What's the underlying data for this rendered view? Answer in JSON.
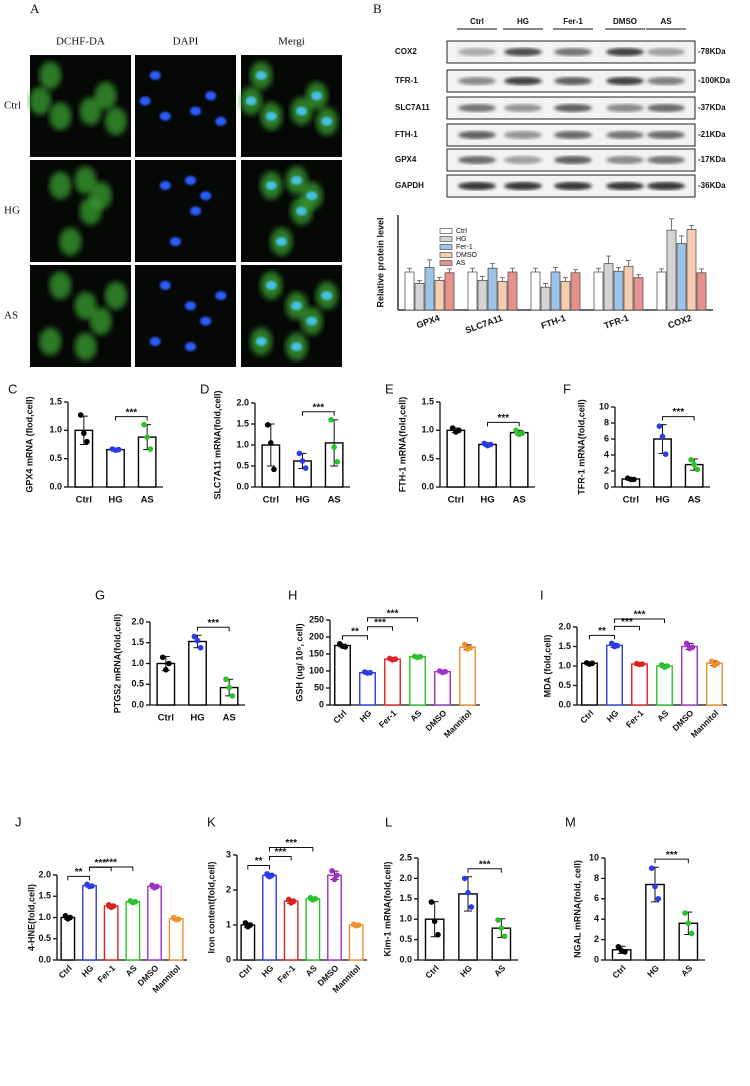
{
  "panel_a": {
    "label": "A",
    "columns": [
      "DCHF-DA",
      "DAPI",
      "Mergi"
    ],
    "rows": [
      "Ctrl",
      "HG",
      "AS"
    ]
  },
  "panel_b": {
    "label": "B",
    "lanes": [
      "Ctrl",
      "HG",
      "Fer-1",
      "DMSO",
      "AS"
    ],
    "proteins": [
      "COX2",
      "TFR-1",
      "SLC7A11",
      "FTH-1",
      "GPX4",
      "GAPDH"
    ],
    "sizes": [
      "-78KDa",
      "-100KDa",
      "-37KDa",
      "-21KDa",
      "-17KDa",
      "-36KDa"
    ]
  },
  "chart_data": [
    {
      "type": "grouped_bar",
      "ylabel": "Relative protein level",
      "categories": [
        "GPX4",
        "SLC7A11",
        "FTH-1",
        "TFR-1",
        "COX2"
      ],
      "series": [
        {
          "name": "Ctrl",
          "color": "#ffffff",
          "values": [
            1.0,
            1.0,
            1.0,
            1.0,
            1.0
          ],
          "errors": [
            0.1,
            0.1,
            0.1,
            0.1,
            0.08
          ]
        },
        {
          "name": "HG",
          "color": "#d4d4d4",
          "values": [
            0.7,
            0.78,
            0.6,
            1.22,
            2.1
          ],
          "errors": [
            0.08,
            0.1,
            0.1,
            0.2,
            0.3
          ]
        },
        {
          "name": "Fer-1",
          "color": "#9ec3e8",
          "values": [
            1.12,
            1.1,
            1.0,
            1.02,
            1.75
          ],
          "errors": [
            0.2,
            0.12,
            0.12,
            0.1,
            0.2
          ]
        },
        {
          "name": "DMSO",
          "color": "#f6cdb0",
          "values": [
            0.78,
            0.75,
            0.75,
            1.15,
            2.12
          ],
          "errors": [
            0.08,
            0.1,
            0.1,
            0.15,
            0.1
          ]
        },
        {
          "name": "AS",
          "color": "#e8918c",
          "values": [
            0.98,
            1.0,
            0.98,
            0.85,
            0.98
          ],
          "errors": [
            0.1,
            0.1,
            0.08,
            0.08,
            0.1
          ]
        }
      ],
      "ylim": [
        0,
        2.5
      ]
    },
    {
      "type": "bar",
      "panel": "C",
      "ylabel": "GPX4 mRNA (flod,cell)",
      "categories": [
        "Ctrl",
        "HG",
        "AS"
      ],
      "bar_color": "#000000",
      "colors": [
        "#000000",
        "#2b3be8",
        "#29c229"
      ],
      "values": [
        1.0,
        0.66,
        0.88
      ],
      "errors": [
        0.25,
        0.02,
        0.22
      ],
      "points": [
        [
          1.27,
          0.95,
          0.8
        ],
        [
          0.67,
          0.65,
          0.66
        ],
        [
          1.1,
          0.88,
          0.67
        ]
      ],
      "ylim": [
        0,
        1.5
      ],
      "yticks": [
        {
          "value": 0,
          "label": "0.0"
        },
        0.5,
        {
          "value": 1,
          "label": "1.0"
        },
        1.5
      ],
      "significance": [
        {
          "text": "***",
          "between": [
            "HG",
            "AS"
          ]
        }
      ]
    },
    {
      "type": "bar",
      "panel": "D",
      "ylabel": "SLC7A11 mRNA(fold,cell)",
      "categories": [
        "Ctrl",
        "HG",
        "AS"
      ],
      "bar_color": "#000000",
      "colors": [
        "#000000",
        "#2b3be8",
        "#29c229"
      ],
      "values": [
        1.0,
        0.62,
        1.05
      ],
      "errors": [
        0.5,
        0.18,
        0.55
      ],
      "points": [
        [
          1.48,
          1.05,
          0.42
        ],
        [
          0.8,
          0.62,
          0.45
        ],
        [
          1.6,
          0.95,
          0.6
        ]
      ],
      "ylim": [
        0,
        2
      ],
      "yticks": [
        {
          "value": 0,
          "label": "0.0"
        },
        0.5,
        {
          "value": 1,
          "label": "1.0"
        },
        1.5,
        {
          "value": 2,
          "label": "2.0"
        }
      ],
      "significance": [
        {
          "text": "***",
          "between": [
            "HG",
            "AS"
          ]
        }
      ]
    },
    {
      "type": "bar",
      "panel": "E",
      "ylabel": "FTH-1 mRNA(fold,cell)",
      "categories": [
        "Ctrl",
        "HG",
        "AS"
      ],
      "bar_color": "#000000",
      "colors": [
        "#000000",
        "#2b3be8",
        "#29c229"
      ],
      "values": [
        1.0,
        0.75,
        0.96
      ],
      "errors": [
        0.04,
        0.03,
        0.04
      ],
      "points": [
        [
          1.04,
          0.97,
          1.0
        ],
        [
          0.77,
          0.73,
          0.75
        ],
        [
          1.0,
          0.93,
          0.95
        ]
      ],
      "ylim": [
        0,
        1.5
      ],
      "yticks": [
        {
          "value": 0,
          "label": "0.0"
        },
        0.5,
        {
          "value": 1,
          "label": "1.0"
        },
        1.5
      ],
      "significance": [
        {
          "text": "***",
          "between": [
            "HG",
            "AS"
          ]
        }
      ]
    },
    {
      "type": "bar",
      "panel": "F",
      "ylabel": "TFR-1 mRNA(fold,cell)",
      "categories": [
        "Ctrl",
        "HG",
        "AS"
      ],
      "bar_color": "#000000",
      "colors": [
        "#000000",
        "#2b3be8",
        "#29c229"
      ],
      "values": [
        1.0,
        6.0,
        2.8
      ],
      "errors": [
        0.15,
        1.8,
        0.7
      ],
      "points": [
        [
          1.1,
          0.95,
          0.95
        ],
        [
          7.6,
          6.3,
          4.1
        ],
        [
          3.4,
          2.8,
          2.2
        ]
      ],
      "ylim": [
        0,
        10
      ],
      "yticks": [
        0,
        2,
        4,
        6,
        8,
        10
      ],
      "significance": [
        {
          "text": "***",
          "between": [
            "HG",
            "AS"
          ]
        }
      ]
    },
    {
      "type": "bar",
      "panel": "G",
      "ylabel": "PTGS2 mRNA(fold,cell)",
      "categories": [
        "Ctrl",
        "HG",
        "AS"
      ],
      "bar_color": "#000000",
      "colors": [
        "#000000",
        "#2b3be8",
        "#29c229"
      ],
      "values": [
        1.0,
        1.53,
        0.42
      ],
      "errors": [
        0.17,
        0.15,
        0.2
      ],
      "points": [
        [
          1.15,
          0.85,
          1.0
        ],
        [
          1.65,
          1.55,
          1.38
        ],
        [
          0.62,
          0.42,
          0.22
        ]
      ],
      "ylim": [
        0,
        2
      ],
      "yticks": [
        {
          "value": 0,
          "label": "0.0"
        },
        0.5,
        {
          "value": 1,
          "label": "1.0"
        },
        1.5,
        {
          "value": 2,
          "label": "2.0"
        }
      ],
      "significance": [
        {
          "text": "***",
          "between": [
            "HG",
            "AS"
          ]
        }
      ]
    },
    {
      "type": "bar",
      "panel": "H",
      "ylabel": "GSH (ug/ 10⁶, cell)",
      "categories": [
        "Ctrl",
        "HG",
        "Fer-1",
        "AS",
        "DMSO",
        "Mannitol"
      ],
      "colors": [
        "#000000",
        "#2b3be8",
        "#e02020",
        "#29c229",
        "#a030c8",
        "#f0902a"
      ],
      "values": [
        175,
        95,
        135,
        142,
        98,
        170
      ],
      "errors": [
        4,
        2,
        3,
        2,
        2,
        7
      ],
      "points": [
        [
          180,
          173,
          171
        ],
        [
          97,
          94,
          95
        ],
        [
          137,
          133,
          135
        ],
        [
          143,
          140,
          142
        ],
        [
          100,
          96,
          98
        ],
        [
          178,
          165,
          168
        ]
      ],
      "ylim": [
        0,
        250
      ],
      "yticks": [
        0,
        50,
        100,
        150,
        200,
        250
      ],
      "significance": [
        {
          "text": "**",
          "between": [
            "Ctrl",
            "HG"
          ]
        },
        {
          "text": "***",
          "between": [
            "HG",
            "Fer-1"
          ]
        },
        {
          "text": "***",
          "between": [
            "HG",
            "AS"
          ]
        }
      ]
    },
    {
      "type": "bar",
      "panel": "I",
      "ylabel": "MDA (fold,cell)",
      "categories": [
        "Ctrl",
        "HG",
        "Fer-1",
        "AS",
        "DMSO",
        "Mannitol"
      ],
      "colors": [
        "#000000",
        "#2b3be8",
        "#e02020",
        "#29c229",
        "#a030c8",
        "#f0902a"
      ],
      "values": [
        1.07,
        1.53,
        1.05,
        1.0,
        1.5,
        1.07
      ],
      "errors": [
        0.03,
        0.05,
        0.02,
        0.04,
        0.08,
        0.06
      ],
      "points": [
        [
          1.08,
          1.05,
          1.07
        ],
        [
          1.58,
          1.5,
          1.52
        ],
        [
          1.06,
          1.04,
          1.05
        ],
        [
          1.03,
          0.97,
          1.0
        ],
        [
          1.58,
          1.45,
          1.48
        ],
        [
          1.12,
          1.02,
          1.07
        ]
      ],
      "ylim": [
        0,
        2
      ],
      "yticks": [
        {
          "value": 0,
          "label": "0.0"
        },
        0.5,
        {
          "value": 1,
          "label": "1.0"
        },
        1.5,
        {
          "value": 2,
          "label": "2.0"
        }
      ],
      "significance": [
        {
          "text": "**",
          "between": [
            "Ctrl",
            "HG"
          ]
        },
        {
          "text": "***",
          "between": [
            "HG",
            "Fer-1"
          ]
        },
        {
          "text": "***",
          "between": [
            "HG",
            "AS"
          ]
        }
      ]
    },
    {
      "type": "bar",
      "panel": "J",
      "ylabel": "4-HNE(fold,cell)",
      "categories": [
        "Ctrl",
        "HG",
        "Fer-1",
        "AS",
        "DMSO",
        "Mannitol"
      ],
      "colors": [
        "#000000",
        "#2b3be8",
        "#e02020",
        "#29c229",
        "#a030c8",
        "#f0902a"
      ],
      "values": [
        1.0,
        1.75,
        1.27,
        1.37,
        1.73,
        0.97
      ],
      "errors": [
        0.04,
        0.03,
        0.04,
        0.02,
        0.04,
        0.03
      ],
      "points": [
        [
          1.04,
          0.97,
          1.0
        ],
        [
          1.78,
          1.73,
          1.74
        ],
        [
          1.3,
          1.24,
          1.27
        ],
        [
          1.39,
          1.35,
          1.37
        ],
        [
          1.76,
          1.7,
          1.73
        ],
        [
          1.0,
          0.95,
          0.96
        ]
      ],
      "ylim": [
        0,
        2
      ],
      "yticks": [
        {
          "value": 0,
          "label": "0.0"
        },
        0.5,
        {
          "value": 1,
          "label": "1.0"
        },
        1.5,
        {
          "value": 2,
          "label": "2.0"
        }
      ],
      "significance": [
        {
          "text": "**",
          "between": [
            "Ctrl",
            "HG"
          ]
        },
        {
          "text": "***",
          "between": [
            "HG",
            "Fer-1"
          ]
        },
        {
          "text": "***",
          "between": [
            "HG",
            "AS"
          ]
        }
      ]
    },
    {
      "type": "bar",
      "panel": "K",
      "ylabel": "Iron content(fold,cell)",
      "categories": [
        "Ctrl",
        "HG",
        "Fer-1",
        "AS",
        "DMSO",
        "Mannitol"
      ],
      "colors": [
        "#000000",
        "#2b3be8",
        "#e02020",
        "#29c229",
        "#a030c8",
        "#f0902a"
      ],
      "values": [
        1.0,
        2.42,
        1.68,
        1.75,
        2.42,
        1.0
      ],
      "errors": [
        0.06,
        0.05,
        0.06,
        0.04,
        0.12,
        0.03
      ],
      "points": [
        [
          1.06,
          0.95,
          1.0
        ],
        [
          2.46,
          2.38,
          2.42
        ],
        [
          1.73,
          1.63,
          1.68
        ],
        [
          1.78,
          1.72,
          1.75
        ],
        [
          2.55,
          2.3,
          2.42
        ],
        [
          1.02,
          0.98,
          1.0
        ]
      ],
      "ylim": [
        0,
        3
      ],
      "yticks": [
        0,
        1,
        2,
        3
      ],
      "significance": [
        {
          "text": "**",
          "between": [
            "Ctrl",
            "HG"
          ]
        },
        {
          "text": "***",
          "between": [
            "HG",
            "Fer-1"
          ]
        },
        {
          "text": "***",
          "between": [
            "HG",
            "AS"
          ]
        }
      ]
    },
    {
      "type": "bar",
      "panel": "L",
      "ylabel": "Kim-1 mRNA(fold,cell)",
      "categories": [
        "Ctrl",
        "HG",
        "AS"
      ],
      "bar_color": "#000000",
      "colors": [
        "#000000",
        "#2b3be8",
        "#29c229"
      ],
      "values": [
        1.0,
        1.62,
        0.78
      ],
      "errors": [
        0.43,
        0.42,
        0.23
      ],
      "points": [
        [
          1.42,
          0.95,
          0.62
        ],
        [
          2.0,
          1.65,
          1.3
        ],
        [
          0.98,
          0.78,
          0.58
        ]
      ],
      "ylim": [
        0,
        2.5
      ],
      "yticks": [
        {
          "value": 0,
          "label": "0.0"
        },
        0.5,
        {
          "value": 1,
          "label": "1.0"
        },
        1.5,
        {
          "value": 2,
          "label": "2.0"
        },
        2.5
      ],
      "significance": [
        {
          "text": "***",
          "between": [
            "HG",
            "AS"
          ]
        }
      ]
    },
    {
      "type": "bar",
      "panel": "M",
      "ylabel": "NGAL mRNA(fold, cell)",
      "categories": [
        "Ctrl",
        "HG",
        "AS"
      ],
      "bar_color": "#000000",
      "colors": [
        "#000000",
        "#2b3be8",
        "#29c229"
      ],
      "values": [
        1.0,
        7.4,
        3.6
      ],
      "errors": [
        0.35,
        1.7,
        1.1
      ],
      "points": [
        [
          1.3,
          0.9,
          0.8
        ],
        [
          9.0,
          7.2,
          6.0
        ],
        [
          4.6,
          3.6,
          2.6
        ]
      ],
      "ylim": [
        0,
        10
      ],
      "yticks": [
        0,
        2,
        4,
        6,
        8,
        10
      ],
      "significance": [
        {
          "text": "***",
          "between": [
            "HG",
            "AS"
          ]
        }
      ]
    }
  ]
}
